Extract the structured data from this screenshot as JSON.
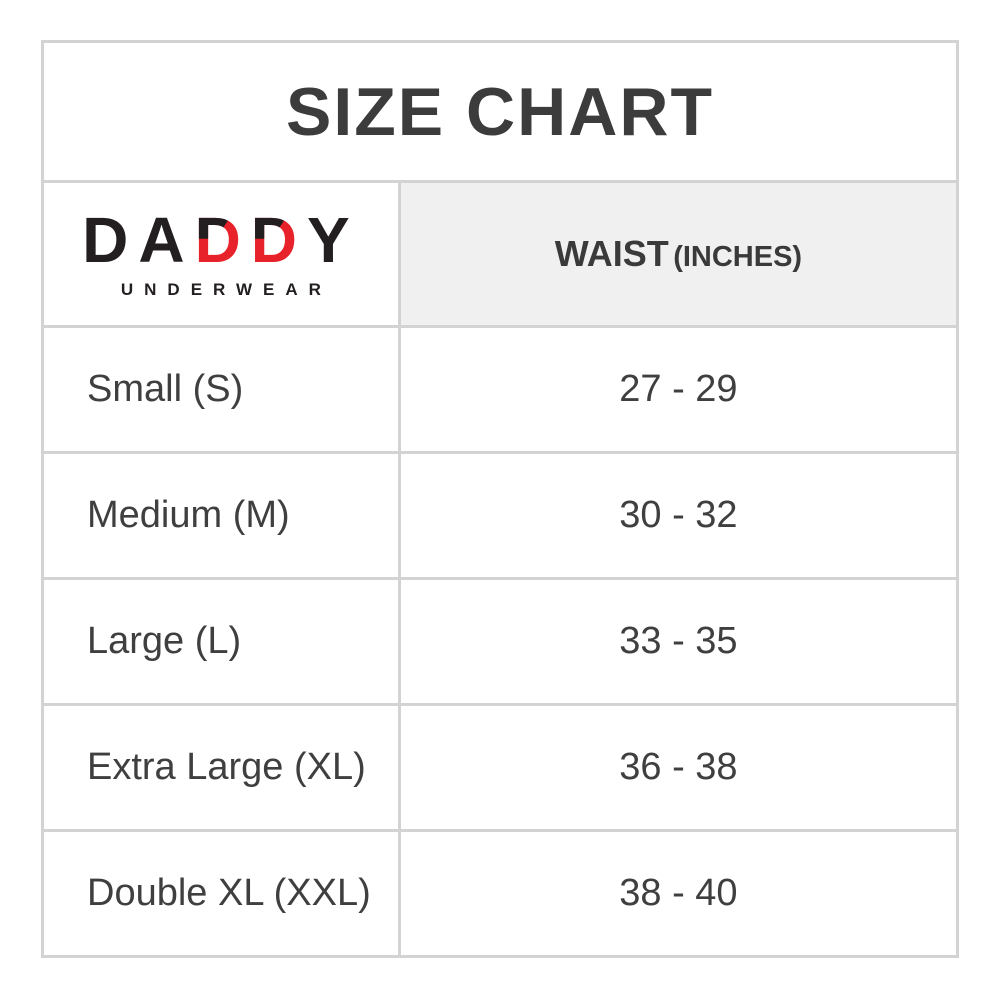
{
  "title": "SIZE CHART",
  "logo": {
    "prefix": "DA",
    "red_letter": "D",
    "suffix": "Y",
    "subtitle": "UNDERWEAR"
  },
  "table": {
    "value_header_main": "WAIST",
    "value_header_unit": "(INCHES)",
    "rows": [
      {
        "size": "Small (S)",
        "waist": "27 - 29"
      },
      {
        "size": "Medium (M)",
        "waist": "30 - 32"
      },
      {
        "size": "Large (L)",
        "waist": "33 - 35"
      },
      {
        "size": "Extra Large (XL)",
        "waist": "36 - 38"
      },
      {
        "size": "Double XL (XXL)",
        "waist": "38 - 40"
      }
    ]
  },
  "colors": {
    "accent_red": "#e8222a",
    "logo_black": "#231f20",
    "text_dark": "#3c3c3c",
    "header_bg": "#f0f0f0",
    "border": "#d3d3d3"
  }
}
